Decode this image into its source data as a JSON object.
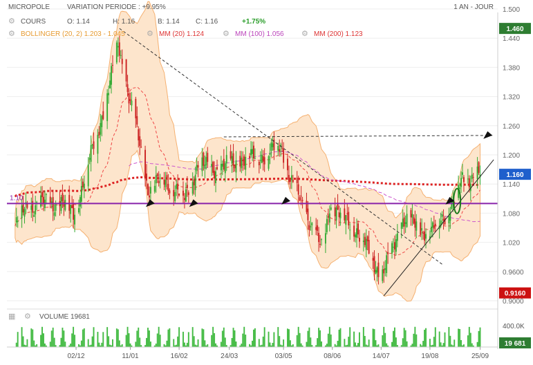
{
  "header": {
    "ticker": "MICROPOLE",
    "variation": "VARIATION PERIODE : +9.95%",
    "period": "1 AN - JOUR"
  },
  "legend_row1": {
    "cours": "COURS",
    "open": "O: 1.14",
    "high": "H: 1.16",
    "low": "B: 1.14",
    "close": "C: 1.16",
    "change": "+1.75%"
  },
  "legend_row2": {
    "bollinger": "BOLLINGER (20, 2) 1.203 - 1.045",
    "mm20": "MM (20) 1.124",
    "mm100": "MM (100) 1.056",
    "mm200": "MM (200) 1.123"
  },
  "volume_label": "VOLUME  19681",
  "colors": {
    "up": "#33aa33",
    "down": "#cc2222",
    "bollinger_fill": "#fde5cc",
    "bollinger_edge": "#f5b070",
    "mm20": "#ee4444",
    "mm100": "#cc55cc",
    "mm200": "#dd2222",
    "support_line": "#8822aa",
    "price_badge": "#2e7d32",
    "current_badge": "#1e5fcc",
    "low_badge": "#cc1111",
    "volume_bar": "#44bb44"
  },
  "chart_data": {
    "type": "candlestick",
    "title": "MICROPOLE",
    "y_ticks": [
      "1.500",
      "1.440",
      "1.380",
      "1.320",
      "1.260",
      "1.200",
      "1.140",
      "1.080",
      "1.020",
      "0.9600",
      "0.9000"
    ],
    "ylim": [
      0.9,
      1.5
    ],
    "x_ticks": [
      "02/12",
      "11/01",
      "16/02",
      "24/03",
      "03/05",
      "08/06",
      "14/07",
      "19/08",
      "25/09"
    ],
    "support_level": {
      "label": "1.10",
      "value": 1.1
    },
    "badges": {
      "high": "1.460",
      "current": "1.160",
      "low": "0.9160"
    },
    "volume": {
      "tick": "400.0K",
      "last": "19 681"
    },
    "series": [
      {
        "name": "BOLLINGER (20, 2) 1.203 - 1.045",
        "values": [
          1.203,
          1.045
        ]
      },
      {
        "name": "MM (20) 1.124",
        "values": [
          1.124
        ]
      },
      {
        "name": "MM (100) 1.056",
        "values": [
          1.056
        ]
      },
      {
        "name": "MM (200) 1.123",
        "values": [
          1.123
        ]
      }
    ],
    "ohlc_keypoints": [
      [
        "2023-10-18",
        1.05
      ],
      [
        "2023-10-25",
        1.09
      ],
      [
        "2023-11-08",
        1.1
      ],
      [
        "2023-11-22",
        1.1
      ],
      [
        "2023-11-30",
        1.08
      ],
      [
        "2023-12-05",
        1.12
      ],
      [
        "2023-12-15",
        1.22
      ],
      [
        "2023-12-25",
        1.32
      ],
      [
        "2024-01-02",
        1.43
      ],
      [
        "2024-01-10",
        1.32
      ],
      [
        "2024-01-18",
        1.22
      ],
      [
        "2024-01-24",
        1.13
      ],
      [
        "2024-02-05",
        1.15
      ],
      [
        "2024-02-20",
        1.11
      ],
      [
        "2024-03-01",
        1.18
      ],
      [
        "2024-03-15",
        1.17
      ],
      [
        "2024-04-01",
        1.19
      ],
      [
        "2024-04-20",
        1.2
      ],
      [
        "2024-05-01",
        1.22
      ],
      [
        "2024-05-08",
        1.15
      ],
      [
        "2024-05-20",
        1.08
      ],
      [
        "2024-06-01",
        1.0
      ],
      [
        "2024-06-06",
        1.1
      ],
      [
        "2024-06-12",
        1.08
      ],
      [
        "2024-06-25",
        1.05
      ],
      [
        "2024-07-05",
        1.0
      ],
      [
        "2024-07-14",
        0.95
      ],
      [
        "2024-07-22",
        1.0
      ],
      [
        "2024-07-30",
        1.07
      ],
      [
        "2024-08-10",
        1.05
      ],
      [
        "2024-08-20",
        1.04
      ],
      [
        "2024-09-05",
        1.1
      ],
      [
        "2024-09-12",
        1.15
      ],
      [
        "2024-09-25",
        1.16
      ]
    ]
  }
}
